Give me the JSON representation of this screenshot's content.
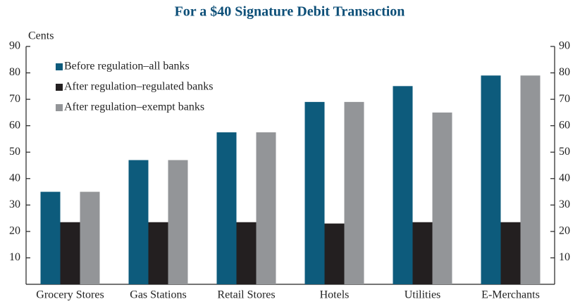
{
  "chart_data": {
    "type": "bar",
    "title": "For a $40 Signature Debit Transaction",
    "y_label": "Cents",
    "categories": [
      "Grocery Stores",
      "Gas Stations",
      "Retail Stores",
      "Hotels",
      "Utilities",
      "E-Merchants"
    ],
    "series": [
      {
        "name": "Before regulation–all banks",
        "color": "#0d5b7c",
        "values": [
          35,
          47,
          57.5,
          69,
          75,
          79
        ]
      },
      {
        "name": "After regulation–regulated banks",
        "color": "#231f20",
        "values": [
          23.5,
          23.5,
          23.5,
          23,
          23.5,
          23.5
        ]
      },
      {
        "name": "After regulation–exempt banks",
        "color": "#939598",
        "values": [
          35,
          47,
          57.5,
          69,
          65,
          79
        ]
      }
    ],
    "ylim": [
      0,
      90
    ],
    "yticks": [
      10,
      20,
      30,
      40,
      50,
      60,
      70,
      80,
      90
    ],
    "y2lim": [
      0,
      90
    ],
    "y2ticks": [
      10,
      20,
      30,
      40,
      50,
      60,
      70,
      80,
      90
    ],
    "grid": false,
    "legend": "upper left"
  }
}
